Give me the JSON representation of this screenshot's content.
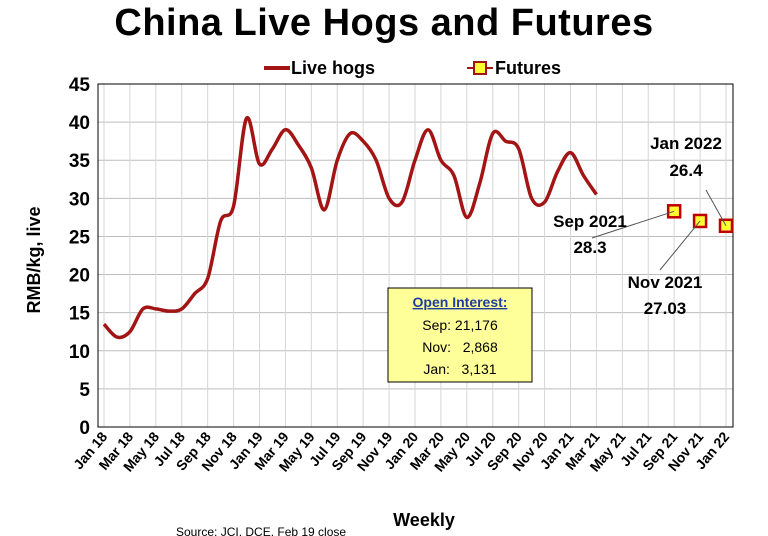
{
  "chart_data": {
    "type": "line",
    "title": "China Live Hogs and Futures",
    "ylabel": "RMB/kg, live",
    "xlabel": "Weekly",
    "ylim": [
      0,
      45
    ],
    "yticks": [
      0,
      5,
      10,
      15,
      20,
      25,
      30,
      35,
      40,
      45
    ],
    "grid": true,
    "legend_position": "top",
    "x_tick_labels": [
      "Jan 18",
      "Mar 18",
      "May 18",
      "Jul 18",
      "Sep 18",
      "Nov 18",
      "Jan 19",
      "Mar 19",
      "May 19",
      "Jul 19",
      "Sep 19",
      "Nov 19",
      "Jan 20",
      "Mar 20",
      "May 20",
      "Jul 20",
      "Sep 20",
      "Nov 20",
      "Jan 21",
      "Mar 21",
      "May 21",
      "Jul 21",
      "Sep 21",
      "Nov 21",
      "Jan 22"
    ],
    "series": [
      {
        "name": "Live hogs",
        "color": "#a31515",
        "style": "line",
        "x": [
          "Jan 18",
          "Feb 18",
          "Mar 18",
          "Apr 18",
          "May 18",
          "Jun 18",
          "Jul 18",
          "Aug 18",
          "Sep 18",
          "Oct 18",
          "Nov 18",
          "Dec 18",
          "Jan 19",
          "Feb 19",
          "Mar 19",
          "Apr 19",
          "May 19",
          "Jun 19",
          "Jul 19",
          "Aug 19",
          "Sep 19",
          "Oct 19",
          "Nov 19",
          "Dec 19",
          "Jan 20",
          "Feb 20",
          "Mar 20",
          "Apr 20",
          "May 20",
          "Jun 20",
          "Jul 20",
          "Aug 20",
          "Sep 20",
          "Oct 20",
          "Nov 20",
          "Dec 20",
          "Jan 21",
          "Feb 21",
          "Mar 21"
        ],
        "values": [
          13.5,
          11.8,
          12.5,
          15.5,
          15.5,
          15.2,
          15.5,
          17.5,
          19.5,
          27.0,
          29.0,
          40.5,
          34.5,
          36.5,
          39.0,
          37.0,
          34.0,
          28.5,
          35.0,
          38.5,
          37.5,
          35.0,
          30.0,
          29.5,
          35.0,
          39.0,
          35.0,
          33.0,
          27.5,
          32.0,
          38.5,
          37.5,
          36.5,
          30.0,
          29.5,
          33.5,
          36.0,
          33.0,
          30.5
        ]
      },
      {
        "name": "Futures",
        "color": "#c00000",
        "fill": "#ffff33",
        "style": "marker",
        "x": [
          "Sep 21",
          "Nov 21",
          "Jan 22"
        ],
        "values": [
          28.3,
          27.03,
          26.4
        ]
      }
    ],
    "annotations": [
      {
        "label": "Sep 2021",
        "value": "28.3"
      },
      {
        "label": "Nov 2021",
        "value": "27.03"
      },
      {
        "label": "Jan 2022",
        "value": "26.4"
      }
    ],
    "open_interest": {
      "heading": "Open Interest:",
      "lines": [
        "Sep: 21,176",
        "Nov:   2,868",
        "Jan:   3,131"
      ]
    },
    "source": "Source: JCI, DCE, Feb 19 close"
  }
}
